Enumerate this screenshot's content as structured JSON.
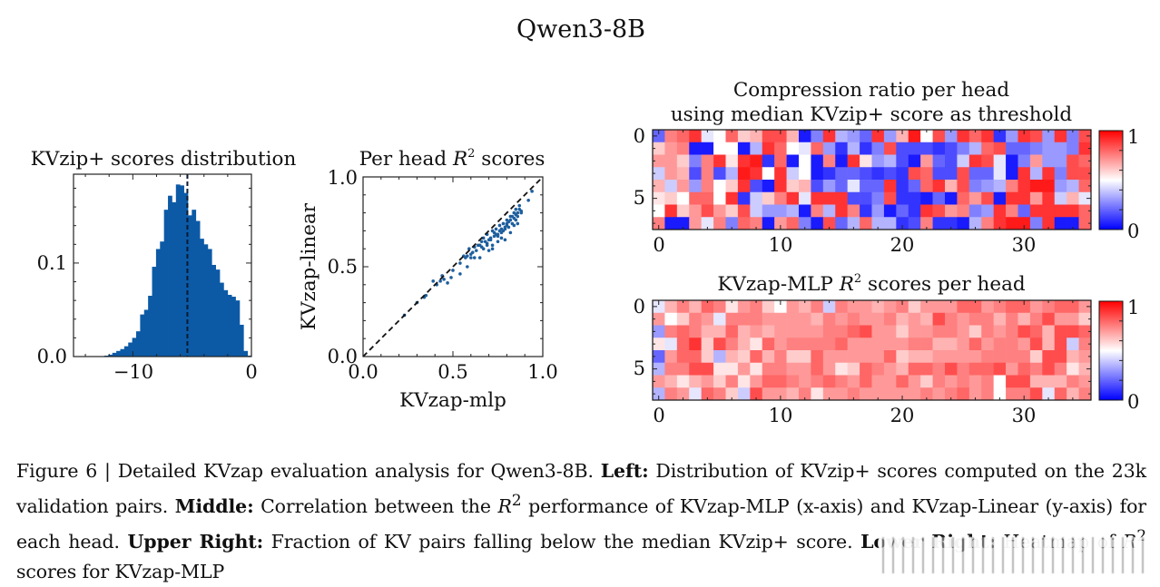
{
  "figure_title": "Qwen3-8B",
  "caption": {
    "fig_label": "Figure 6 | Detailed KVzap evaluation analysis for Qwen3-8B.",
    "left_label": "Left:",
    "left_text": "Distribution of KVzip+ scores computed on the 23k validation pairs.",
    "middle_label": "Middle:",
    "middle_text_1": "Correlation between the",
    "middle_r2": "R",
    "middle_text_2": "performance of KVzap-MLP (x-axis) and KVzap-Linear (y-axis) for each head.",
    "upper_right_label": "Upper Right:",
    "upper_right_text": "Fraction of KV pairs falling below the median KVzip+ score.",
    "lower_right_label": "Lower Right:",
    "lower_right_text_1": "Heatmap of",
    "lower_right_r2": "R",
    "lower_right_text_2": "scores for KVzap-MLP"
  },
  "colors": {
    "bar": "#0c5aa6",
    "scatter": "#1f5f9e",
    "cmap_low": "#0000ff",
    "cmap_mid": "#ffffff",
    "cmap_high": "#ff0000"
  },
  "chart_data": [
    {
      "type": "bar",
      "subtype": "histogram",
      "title": "KVzip+ scores distribution",
      "xlabel": "",
      "ylabel": "",
      "xlim": [
        -15,
        0
      ],
      "ylim": [
        0,
        0.195
      ],
      "xticks": [
        -10,
        0
      ],
      "xtick_labels": [
        "−10",
        "0"
      ],
      "yticks": [
        0.0,
        0.1
      ],
      "ytick_labels": [
        "0.0",
        "0.1"
      ],
      "bin_start": -12.4,
      "bin_end": 0,
      "values": [
        0.001,
        0.002,
        0.004,
        0.006,
        0.008,
        0.011,
        0.015,
        0.02,
        0.027,
        0.045,
        0.05,
        0.065,
        0.096,
        0.115,
        0.123,
        0.157,
        0.172,
        0.165,
        0.184,
        0.183,
        0.175,
        0.151,
        0.157,
        0.145,
        0.126,
        0.12,
        0.115,
        0.098,
        0.093,
        0.079,
        0.071,
        0.066,
        0.064,
        0.06,
        0.034,
        0.006,
        0.001
      ],
      "median_line": -5.4,
      "median_line_style": "dashed"
    },
    {
      "type": "scatter",
      "title": "Per head R² scores",
      "title_main": "Per head",
      "title_r": "R",
      "title_sup": "2",
      "title_tail": "scores",
      "xlabel": "KVzap-mlp",
      "ylabel": "KVzap-linear",
      "xlim": [
        0,
        1
      ],
      "ylim": [
        0,
        1
      ],
      "xticks": [
        0.0,
        0.5,
        1.0
      ],
      "xtick_labels": [
        "0.0",
        "0.5",
        "1.0"
      ],
      "yticks": [
        0.0,
        0.5,
        1.0
      ],
      "ytick_labels": [
        "0.0",
        "0.5",
        "1.0"
      ],
      "reference_line": "y = x (dashed)",
      "points": [
        [
          0.23,
          0.23
        ],
        [
          0.3,
          0.3
        ],
        [
          0.34,
          0.33
        ],
        [
          0.35,
          0.34
        ],
        [
          0.39,
          0.42
        ],
        [
          0.41,
          0.4
        ],
        [
          0.43,
          0.42
        ],
        [
          0.44,
          0.45
        ],
        [
          0.45,
          0.43
        ],
        [
          0.47,
          0.41
        ],
        [
          0.49,
          0.44
        ],
        [
          0.5,
          0.48
        ],
        [
          0.54,
          0.52
        ],
        [
          0.54,
          0.46
        ],
        [
          0.56,
          0.56
        ],
        [
          0.57,
          0.55
        ],
        [
          0.58,
          0.5
        ],
        [
          0.59,
          0.6
        ],
        [
          0.6,
          0.55
        ],
        [
          0.62,
          0.55
        ],
        [
          0.62,
          0.61
        ],
        [
          0.64,
          0.62
        ],
        [
          0.65,
          0.55
        ],
        [
          0.66,
          0.64
        ],
        [
          0.67,
          0.6
        ],
        [
          0.67,
          0.66
        ],
        [
          0.69,
          0.63
        ],
        [
          0.69,
          0.68
        ],
        [
          0.7,
          0.59
        ],
        [
          0.71,
          0.65
        ],
        [
          0.72,
          0.7
        ],
        [
          0.72,
          0.6
        ],
        [
          0.73,
          0.67
        ],
        [
          0.74,
          0.71
        ],
        [
          0.75,
          0.64
        ],
        [
          0.75,
          0.68
        ],
        [
          0.76,
          0.73
        ],
        [
          0.77,
          0.69
        ],
        [
          0.78,
          0.74
        ],
        [
          0.79,
          0.65
        ],
        [
          0.79,
          0.71
        ],
        [
          0.8,
          0.76
        ],
        [
          0.81,
          0.72
        ],
        [
          0.82,
          0.78
        ],
        [
          0.83,
          0.74
        ],
        [
          0.84,
          0.8
        ],
        [
          0.85,
          0.76
        ],
        [
          0.85,
          0.82
        ],
        [
          0.86,
          0.78
        ],
        [
          0.86,
          0.74
        ],
        [
          0.87,
          0.84
        ],
        [
          0.88,
          0.8
        ],
        [
          0.88,
          0.81
        ],
        [
          0.92,
          0.87
        ],
        [
          0.94,
          0.92
        ],
        [
          0.61,
          0.58
        ],
        [
          0.66,
          0.61
        ],
        [
          0.7,
          0.65
        ],
        [
          0.73,
          0.69
        ],
        [
          0.77,
          0.71
        ],
        [
          0.8,
          0.73
        ],
        [
          0.82,
          0.76
        ],
        [
          0.85,
          0.79
        ],
        [
          0.87,
          0.82
        ],
        [
          0.72,
          0.62
        ],
        [
          0.77,
          0.66
        ],
        [
          0.82,
          0.69
        ],
        [
          0.84,
          0.73
        ],
        [
          0.63,
          0.59
        ],
        [
          0.68,
          0.64
        ],
        [
          0.74,
          0.68
        ],
        [
          0.78,
          0.7
        ],
        [
          0.81,
          0.75
        ],
        [
          0.83,
          0.78
        ],
        [
          0.86,
          0.8
        ],
        [
          0.79,
          0.72
        ],
        [
          0.76,
          0.7
        ],
        [
          0.71,
          0.66
        ],
        [
          0.65,
          0.62
        ],
        [
          0.6,
          0.57
        ],
        [
          0.58,
          0.56
        ],
        [
          0.69,
          0.62
        ],
        [
          0.75,
          0.67
        ],
        [
          0.8,
          0.74
        ],
        [
          0.84,
          0.77
        ]
      ]
    },
    {
      "type": "heatmap",
      "title_line1": "Compression ratio per head",
      "title_line2": "using median KVzip+ score as threshold",
      "xlabel": "",
      "ylabel": "",
      "xticks": [
        0,
        10,
        20,
        30
      ],
      "xtick_labels": [
        "0",
        "10",
        "20",
        "30"
      ],
      "yticks": [
        0,
        5
      ],
      "ytick_labels": [
        "0",
        "5"
      ],
      "colorbar_range": [
        0,
        1
      ],
      "colorbar_labels": [
        "0",
        "1"
      ],
      "colormap": "bwr",
      "rows": 8,
      "cols": 36,
      "values": [
        [
          0.2,
          0.75,
          0.8,
          0.9,
          0.45,
          0.5,
          0.8,
          0.6,
          0.65,
          0.85,
          0.85,
          0.65,
          0.05,
          0.25,
          0.9,
          0.35,
          0.3,
          0.2,
          0.9,
          0.3,
          0.65,
          0.95,
          0.5,
          0.85,
          0.3,
          0.9,
          0.8,
          0.9,
          0.1,
          0.3,
          0.9,
          0.85,
          0.3,
          0.9,
          0.25,
          0.85
        ],
        [
          0.6,
          0.7,
          0.75,
          0.05,
          0.05,
          0.5,
          0.5,
          0.05,
          0.35,
          0.9,
          0.8,
          0.5,
          0.45,
          0.8,
          0.3,
          0.1,
          0.35,
          0.1,
          0.25,
          0.85,
          0.15,
          0.15,
          0.15,
          0.1,
          0.15,
          0.25,
          0.35,
          0.8,
          0.85,
          0.2,
          0.2,
          0.25,
          0.3,
          0.3,
          0.25,
          0.9
        ],
        [
          0.7,
          0.7,
          0.6,
          0.25,
          0.75,
          0.9,
          0.55,
          0.9,
          0.95,
          0.1,
          0.8,
          0.05,
          0.5,
          0.05,
          0.75,
          0.05,
          0.9,
          0.55,
          0.3,
          0.35,
          0.15,
          0.05,
          0.7,
          0.2,
          0.15,
          0.4,
          0.9,
          0.85,
          0.45,
          0.05,
          0.25,
          0.7,
          0.3,
          0.3,
          0.85,
          0.8
        ],
        [
          0.4,
          0.7,
          0.65,
          0.15,
          0.75,
          0.15,
          0.35,
          0.95,
          0.9,
          0.5,
          0.9,
          0.4,
          0.5,
          0.05,
          0.1,
          0.2,
          0.2,
          0.15,
          0.1,
          0.15,
          0.1,
          0.85,
          0.8,
          0.15,
          0.15,
          0.85,
          0.2,
          0.2,
          0.45,
          0.05,
          0.9,
          0.35,
          0.9,
          0.25,
          0.85,
          0.85
        ],
        [
          0.65,
          0.4,
          0.7,
          0.3,
          0.75,
          0.5,
          0.6,
          0.9,
          0.15,
          0.05,
          0.9,
          0.6,
          0.65,
          0.15,
          0.3,
          0.2,
          0.45,
          0.2,
          0.2,
          0.9,
          0.1,
          0.2,
          0.8,
          0.9,
          0.65,
          0.85,
          0.25,
          0.3,
          0.35,
          0.75,
          0.9,
          0.95,
          0.95,
          0.3,
          0.35,
          0.8
        ],
        [
          0.55,
          0.6,
          0.5,
          0.8,
          0.8,
          0.5,
          0.9,
          0.1,
          0.4,
          0.6,
          0.75,
          0.9,
          0.45,
          0.9,
          0.9,
          0.9,
          0.15,
          0.15,
          0.25,
          0.85,
          0.1,
          0.1,
          0.05,
          0.2,
          0.05,
          0.8,
          0.7,
          0.85,
          0.05,
          0.9,
          0.9,
          0.7,
          0.9,
          0.4,
          0.65,
          0.45
        ],
        [
          0.5,
          0.9,
          0.6,
          0.7,
          0.85,
          0.7,
          0.6,
          0.85,
          0.4,
          0.3,
          0.3,
          0.35,
          0.05,
          0.75,
          0.35,
          0.9,
          0.75,
          0.1,
          0.3,
          0.05,
          0.2,
          0.1,
          0.9,
          0.85,
          0.7,
          0.75,
          0.25,
          0.3,
          0.9,
          0.75,
          0.2,
          0.9,
          0.9,
          0.9,
          0.9,
          0.8
        ],
        [
          0.75,
          0.05,
          0.05,
          0.7,
          0.45,
          0.75,
          0.25,
          0.8,
          0.75,
          0.05,
          0.7,
          0.8,
          0.25,
          0.05,
          0.85,
          0.2,
          0.35,
          0.8,
          0.35,
          0.35,
          0.1,
          0.15,
          0.75,
          0.1,
          0.1,
          0.05,
          0.35,
          0.75,
          0.9,
          0.95,
          0.95,
          0.25,
          0.9,
          0.05,
          0.05,
          0.8
        ]
      ]
    },
    {
      "type": "heatmap",
      "title_main": "KVzap-MLP",
      "title_r": "R",
      "title_sup": "2",
      "title_tail": "scores per head",
      "xlabel": "",
      "ylabel": "",
      "xticks": [
        0,
        10,
        20,
        30
      ],
      "xtick_labels": [
        "0",
        "10",
        "20",
        "30"
      ],
      "yticks": [
        0,
        5
      ],
      "ytick_labels": [
        "0",
        "5"
      ],
      "colorbar_range": [
        0,
        1
      ],
      "colorbar_labels": [
        "0",
        "1"
      ],
      "colormap": "bwr",
      "rows": 8,
      "cols": 36,
      "values": [
        [
          0.45,
          0.65,
          0.75,
          0.65,
          0.8,
          0.75,
          0.55,
          0.7,
          0.75,
          0.6,
          0.5,
          0.7,
          0.65,
          0.75,
          0.4,
          0.75,
          0.7,
          0.7,
          0.65,
          0.7,
          0.75,
          0.6,
          0.7,
          0.7,
          0.7,
          0.8,
          0.8,
          0.7,
          0.75,
          0.8,
          0.8,
          0.7,
          0.75,
          0.8,
          0.8,
          0.7
        ],
        [
          0.7,
          0.5,
          0.6,
          0.75,
          0.7,
          0.45,
          0.75,
          0.75,
          0.75,
          0.7,
          0.7,
          0.7,
          0.7,
          0.65,
          0.75,
          0.7,
          0.75,
          0.7,
          0.7,
          0.75,
          0.65,
          0.7,
          0.65,
          0.85,
          0.75,
          0.7,
          0.75,
          0.75,
          0.65,
          0.75,
          0.65,
          0.75,
          0.85,
          0.7,
          0.7,
          0.6
        ],
        [
          0.3,
          0.75,
          0.8,
          0.75,
          0.65,
          0.65,
          0.8,
          0.65,
          0.7,
          0.65,
          0.7,
          0.7,
          0.7,
          0.7,
          0.75,
          0.75,
          0.8,
          0.85,
          0.7,
          0.7,
          0.6,
          0.7,
          0.7,
          0.75,
          0.75,
          0.7,
          0.6,
          0.75,
          0.7,
          0.75,
          0.85,
          0.8,
          0.65,
          0.85,
          0.85,
          0.8
        ],
        [
          0.55,
          0.45,
          0.8,
          0.9,
          0.6,
          0.85,
          0.75,
          0.65,
          0.55,
          0.8,
          0.7,
          0.75,
          0.75,
          0.75,
          0.75,
          0.8,
          0.7,
          0.7,
          0.7,
          0.7,
          0.7,
          0.75,
          0.75,
          0.65,
          0.65,
          0.7,
          0.8,
          0.7,
          0.75,
          0.75,
          0.7,
          0.85,
          0.65,
          0.85,
          0.4,
          0.75
        ],
        [
          0.2,
          0.7,
          0.8,
          0.8,
          0.6,
          0.35,
          0.65,
          0.6,
          0.8,
          0.65,
          0.75,
          0.6,
          0.6,
          0.8,
          0.7,
          0.7,
          0.7,
          0.7,
          0.7,
          0.8,
          0.6,
          0.65,
          0.65,
          0.7,
          0.7,
          0.7,
          0.7,
          0.75,
          0.75,
          0.75,
          0.75,
          0.6,
          0.85,
          0.85,
          0.65,
          0.7
        ],
        [
          0.35,
          0.75,
          0.75,
          0.85,
          0.85,
          0.55,
          0.55,
          0.7,
          0.55,
          0.75,
          0.75,
          0.7,
          0.7,
          0.8,
          0.7,
          0.55,
          0.6,
          0.8,
          0.75,
          0.7,
          0.65,
          0.8,
          0.8,
          0.75,
          0.85,
          0.75,
          0.8,
          0.8,
          0.85,
          0.7,
          0.8,
          0.75,
          0.85,
          0.75,
          0.55,
          0.65
        ],
        [
          0.7,
          0.65,
          0.55,
          0.65,
          0.7,
          0.6,
          0.75,
          0.55,
          0.7,
          0.8,
          0.8,
          0.75,
          0.7,
          0.75,
          0.8,
          0.75,
          0.7,
          0.8,
          0.7,
          0.7,
          0.8,
          0.7,
          0.6,
          0.75,
          0.7,
          0.75,
          0.7,
          0.75,
          0.5,
          0.85,
          0.85,
          0.65,
          0.65,
          0.65,
          0.75,
          0.7
        ],
        [
          0.35,
          0.75,
          0.7,
          0.45,
          0.8,
          0.75,
          0.6,
          0.4,
          0.85,
          0.7,
          0.7,
          0.65,
          0.75,
          0.55,
          0.7,
          0.7,
          0.75,
          0.7,
          0.7,
          0.7,
          0.7,
          0.7,
          0.75,
          0.7,
          0.75,
          0.8,
          0.7,
          0.75,
          0.5,
          0.75,
          0.75,
          0.85,
          0.45,
          0.8,
          0.65,
          0.75
        ]
      ]
    }
  ]
}
